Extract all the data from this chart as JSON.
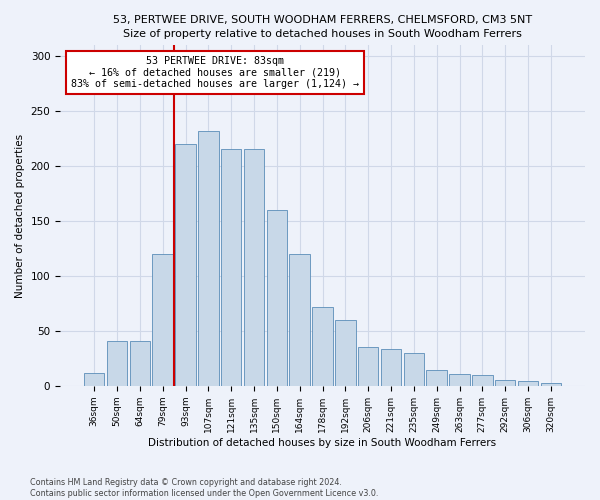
{
  "title": "53, PERTWEE DRIVE, SOUTH WOODHAM FERRERS, CHELMSFORD, CM3 5NT",
  "subtitle": "Size of property relative to detached houses in South Woodham Ferrers",
  "xlabel": "Distribution of detached houses by size in South Woodham Ferrers",
  "ylabel": "Number of detached properties",
  "categories": [
    "36sqm",
    "50sqm",
    "64sqm",
    "79sqm",
    "93sqm",
    "107sqm",
    "121sqm",
    "135sqm",
    "150sqm",
    "164sqm",
    "178sqm",
    "192sqm",
    "206sqm",
    "221sqm",
    "235sqm",
    "249sqm",
    "263sqm",
    "277sqm",
    "292sqm",
    "306sqm",
    "320sqm"
  ],
  "bar_values": [
    12,
    41,
    41,
    120,
    220,
    232,
    216,
    216,
    160,
    120,
    72,
    60,
    35,
    34,
    30,
    14,
    11,
    10,
    5,
    4,
    3
  ],
  "bar_color": "#c8d8e8",
  "bar_edge_color": "#5b8db8",
  "property_label": "53 PERTWEE DRIVE: 83sqm",
  "annotation_line1": "← 16% of detached houses are smaller (219)",
  "annotation_line2": "83% of semi-detached houses are larger (1,124) →",
  "vline_color": "#cc0000",
  "annotation_box_edge": "#cc0000",
  "annotation_box_fill": "#ffffff",
  "footer1": "Contains HM Land Registry data © Crown copyright and database right 2024.",
  "footer2": "Contains public sector information licensed under the Open Government Licence v3.0.",
  "ylim": [
    0,
    310
  ],
  "yticks": [
    0,
    50,
    100,
    150,
    200,
    250,
    300
  ],
  "grid_color": "#d0d8e8",
  "background_color": "#eef2fa"
}
